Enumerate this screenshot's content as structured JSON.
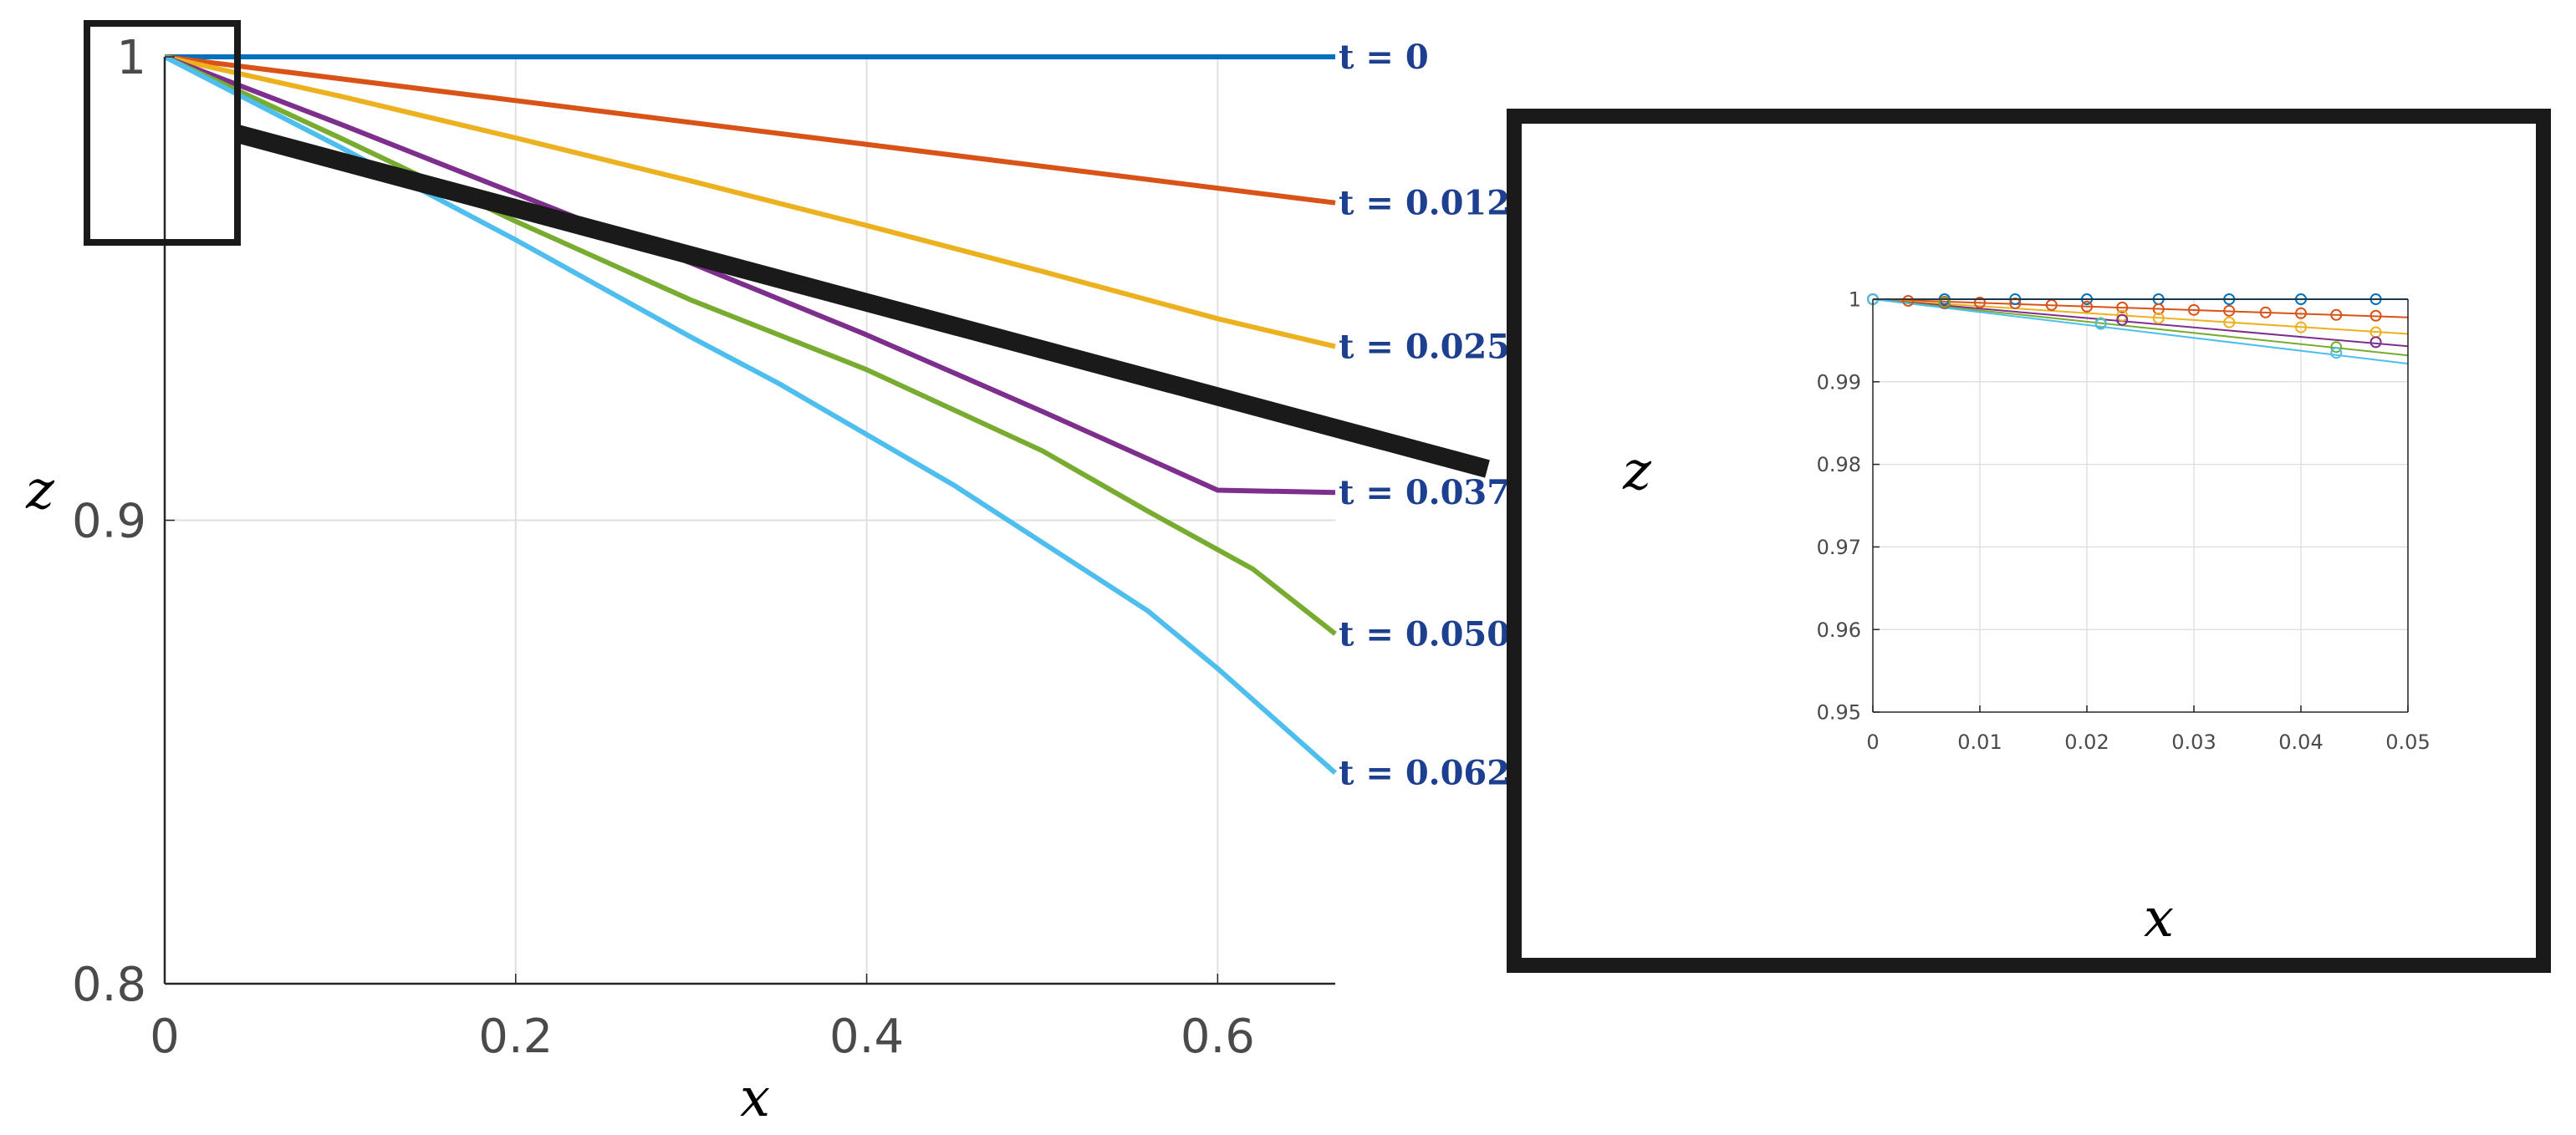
{
  "colors": {
    "series": [
      "#0072BD",
      "#D95319",
      "#EDB120",
      "#7E2F8E",
      "#77AC30",
      "#4DBEEE"
    ],
    "grid": "#e0e0e0",
    "axis": "#262626",
    "zoom": "#1a1a1a",
    "label": "#1d3f8f"
  },
  "chart_data": [
    {
      "type": "line",
      "title": "",
      "xlabel": "x",
      "ylabel": "z",
      "xlim": [
        0,
        0.667
      ],
      "ylim": [
        0.8,
        1.0
      ],
      "xticks": [
        "0",
        "0.2",
        "0.4",
        "0.6"
      ],
      "xtick_values": [
        0,
        0.2,
        0.4,
        0.6
      ],
      "yticks": [
        "0.8",
        "0.9",
        "1"
      ],
      "ytick_values": [
        0.8,
        0.9,
        1.0
      ],
      "grid": true,
      "series": [
        {
          "name": "t = 0",
          "x": [
            0,
            0.667
          ],
          "y": [
            1.0,
            1.0
          ]
        },
        {
          "name": "t = 0.012",
          "x": [
            0,
            0.667
          ],
          "y": [
            1.0,
            0.9685
          ]
        },
        {
          "name": "t = 0.025",
          "x": [
            0,
            0.1,
            0.2,
            0.3,
            0.4,
            0.5,
            0.6,
            0.667
          ],
          "y": [
            1.0,
            0.9915,
            0.9825,
            0.9732,
            0.9636,
            0.9537,
            0.9435,
            0.9375
          ]
        },
        {
          "name": "t = 0.037",
          "x": [
            0,
            0.1,
            0.2,
            0.3,
            0.4,
            0.5,
            0.6,
            0.667
          ],
          "y": [
            1.0,
            0.9855,
            0.9705,
            0.9555,
            0.94,
            0.9235,
            0.9065,
            0.906
          ]
        },
        {
          "name": "t = 0.050",
          "x": [
            0,
            0.1,
            0.2,
            0.3,
            0.4,
            0.5,
            0.56,
            0.62,
            0.667
          ],
          "y": [
            1.0,
            0.9825,
            0.9645,
            0.9475,
            0.9325,
            0.915,
            0.902,
            0.8895,
            0.8755
          ]
        },
        {
          "name": "t = 0.062",
          "x": [
            0,
            0.1,
            0.2,
            0.3,
            0.35,
            0.45,
            0.56,
            0.6,
            0.667
          ],
          "y": [
            1.0,
            0.9805,
            0.9605,
            0.9395,
            0.9295,
            0.9075,
            0.8805,
            0.868,
            0.8455
          ]
        }
      ],
      "zoom_region": {
        "x": [
          0,
          0.05
        ],
        "y": [
          0.96,
          1.0
        ]
      }
    },
    {
      "type": "line",
      "title": "",
      "xlabel": "x",
      "ylabel": "z",
      "xlim": [
        0,
        0.05
      ],
      "ylim": [
        0.95,
        1.0
      ],
      "xticks": [
        "0",
        "0.01",
        "0.02",
        "0.03",
        "0.04",
        "0.05"
      ],
      "xtick_values": [
        0,
        0.01,
        0.02,
        0.03,
        0.04,
        0.05
      ],
      "yticks": [
        "0.95",
        "0.96",
        "0.97",
        "0.98",
        "0.99",
        "1"
      ],
      "ytick_values": [
        0.95,
        0.96,
        0.97,
        0.98,
        0.99,
        1.0
      ],
      "grid": true,
      "series": [
        {
          "name": "t = 0",
          "x": [
            0,
            0.05
          ],
          "y": [
            1.0,
            1.0
          ],
          "markers_x": [
            0,
            0.0067,
            0.0133,
            0.02,
            0.0267,
            0.0333,
            0.04,
            0.047
          ],
          "markers_y": [
            1.0,
            1.0,
            1.0,
            1.0,
            1.0,
            1.0,
            1.0,
            1.0
          ]
        },
        {
          "name": "t = 0.012",
          "x": [
            0,
            0.05
          ],
          "y": [
            1.0,
            0.9978
          ],
          "markers_x": [
            0,
            0.0033,
            0.0067,
            0.01,
            0.0133,
            0.0167,
            0.02,
            0.0233,
            0.0267,
            0.03,
            0.0333,
            0.0367,
            0.04,
            0.0433,
            0.047
          ],
          "markers_y": [
            1.0,
            0.9998,
            0.9997,
            0.9996,
            0.9995,
            0.9993,
            0.9991,
            0.999,
            0.9988,
            0.9987,
            0.9986,
            0.9984,
            0.9983,
            0.9981,
            0.998
          ]
        },
        {
          "name": "t = 0.025",
          "x": [
            0,
            0.05
          ],
          "y": [
            1.0,
            0.9958
          ],
          "markers_x": [
            0,
            0.0233,
            0.0267,
            0.0333,
            0.04,
            0.047
          ],
          "markers_y": [
            1.0,
            0.998,
            0.9977,
            0.9972,
            0.9966,
            0.996
          ]
        },
        {
          "name": "t = 0.037",
          "x": [
            0,
            0.05
          ],
          "y": [
            1.0,
            0.9943
          ],
          "markers_x": [
            0,
            0.0067,
            0.0233,
            0.047
          ],
          "markers_y": [
            1.0,
            0.9995,
            0.9975,
            0.9948
          ]
        },
        {
          "name": "t = 0.050",
          "x": [
            0,
            0.05
          ],
          "y": [
            1.0,
            0.9932
          ],
          "markers_x": [
            0,
            0.0067,
            0.0213,
            0.0433
          ],
          "markers_y": [
            1.0,
            0.9996,
            0.9971,
            0.9942
          ]
        },
        {
          "name": "t = 0.062",
          "x": [
            0,
            0.05
          ],
          "y": [
            1.0,
            0.9922
          ],
          "markers_x": [
            0,
            0.0213,
            0.0433
          ],
          "markers_y": [
            1.0,
            0.997,
            0.9935
          ]
        }
      ]
    }
  ],
  "curve_labels": [
    "t = 0",
    "t = 0.012",
    "t = 0.025",
    "t = 0.037",
    "t = 0.050",
    "t = 0.062"
  ]
}
